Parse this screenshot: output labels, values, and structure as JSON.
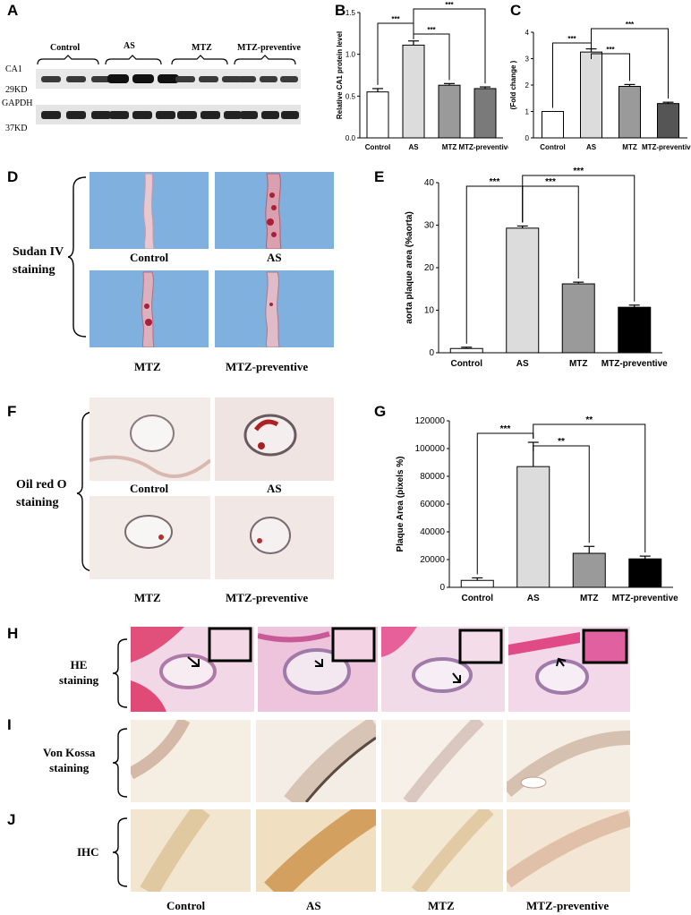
{
  "panels": {
    "A": {
      "letter": "A",
      "groups": [
        "Control",
        "AS",
        "MTZ",
        "MTZ-preventive"
      ],
      "row_labels": [
        "CA1",
        "29KD",
        "GAPDH",
        "37KD"
      ]
    },
    "D": {
      "letter": "D",
      "stain_label": "Sudan IV\nstaining",
      "labels": [
        "Control",
        "AS",
        "MTZ",
        "MTZ-preventive"
      ]
    },
    "F": {
      "letter": "F",
      "stain_label": "Oil red O\nstaining",
      "labels": [
        "Control",
        "AS",
        "MTZ",
        "MTZ-preventive"
      ]
    },
    "H": {
      "letter": "H",
      "stain_label": "HE\nstaining"
    },
    "I": {
      "letter": "I",
      "stain_label": "Von Kossa\nstaining"
    },
    "J": {
      "letter": "J",
      "stain_label": "IHC"
    },
    "bottom_labels": [
      "Control",
      "AS",
      "MTZ",
      "MTZ-preventive"
    ]
  },
  "chart_data": [
    {
      "id": "B",
      "letter": "B",
      "type": "bar",
      "categories": [
        "Control",
        "AS",
        "MTZ",
        "MTZ-preventive"
      ],
      "values": [
        0.55,
        1.11,
        0.63,
        0.59
      ],
      "errors": [
        0.04,
        0.05,
        0.02,
        0.02
      ],
      "colors": [
        "#ffffff",
        "#dcdcdc",
        "#9a9a9a",
        "#7a7a7a"
      ],
      "ylabel": "Relative CA1 protein level",
      "ylim": [
        0,
        1.5
      ],
      "yticks": [
        "0.0",
        "0.5",
        "1.0",
        "1.5"
      ],
      "sig": [
        {
          "from": 0,
          "to": 1,
          "label": "***"
        },
        {
          "from": 1,
          "to": 2,
          "label": "***"
        },
        {
          "from": 1,
          "to": 3,
          "label": "***"
        }
      ]
    },
    {
      "id": "C",
      "letter": "C",
      "type": "bar",
      "categories": [
        "Control",
        "AS",
        "MTZ",
        "MTZ-preventive"
      ],
      "values": [
        1.0,
        3.25,
        1.95,
        1.3
      ],
      "errors": [
        0.0,
        0.12,
        0.07,
        0.05
      ],
      "colors": [
        "#ffffff",
        "#dcdcdc",
        "#9a9a9a",
        "#555555"
      ],
      "ylabel": "Relative mRNA level of CA1\n(Fold change )",
      "ylim": [
        0,
        4
      ],
      "yticks": [
        "0",
        "1",
        "2",
        "3",
        "4"
      ],
      "sig": [
        {
          "from": 0,
          "to": 1,
          "label": "***"
        },
        {
          "from": 1,
          "to": 2,
          "label": "***"
        },
        {
          "from": 1,
          "to": 3,
          "label": "***"
        }
      ]
    },
    {
      "id": "E",
      "letter": "E",
      "type": "bar",
      "categories": [
        "Control",
        "AS",
        "MTZ",
        "MTZ-preventive"
      ],
      "values": [
        1.0,
        29.3,
        16.2,
        10.7
      ],
      "errors": [
        0.3,
        0.5,
        0.4,
        0.5
      ],
      "colors": [
        "#ffffff",
        "#dcdcdc",
        "#9a9a9a",
        "#000000"
      ],
      "ylabel": "aorta plaque area (%aorta)",
      "ylim": [
        0,
        40
      ],
      "yticks": [
        "0",
        "10",
        "20",
        "30",
        "40"
      ],
      "sig": [
        {
          "from": 0,
          "to": 1,
          "label": "***"
        },
        {
          "from": 1,
          "to": 2,
          "label": "***"
        },
        {
          "from": 1,
          "to": 3,
          "label": "***"
        }
      ]
    },
    {
      "id": "G",
      "letter": "G",
      "type": "bar",
      "categories": [
        "Control",
        "AS",
        "MTZ",
        "MTZ-preventive"
      ],
      "values": [
        5000,
        87000,
        24500,
        20500
      ],
      "errors": [
        1800,
        17500,
        5000,
        2000
      ],
      "colors": [
        "#ffffff",
        "#dcdcdc",
        "#9a9a9a",
        "#000000"
      ],
      "ylabel": "Plaque Area (pixels %)",
      "ylim": [
        0,
        120000
      ],
      "yticks": [
        "0",
        "20000",
        "40000",
        "60000",
        "80000",
        "100000",
        "120000"
      ],
      "sig": [
        {
          "from": 0,
          "to": 1,
          "label": "***"
        },
        {
          "from": 1,
          "to": 2,
          "label": "**"
        },
        {
          "from": 1,
          "to": 3,
          "label": "**"
        }
      ]
    }
  ]
}
